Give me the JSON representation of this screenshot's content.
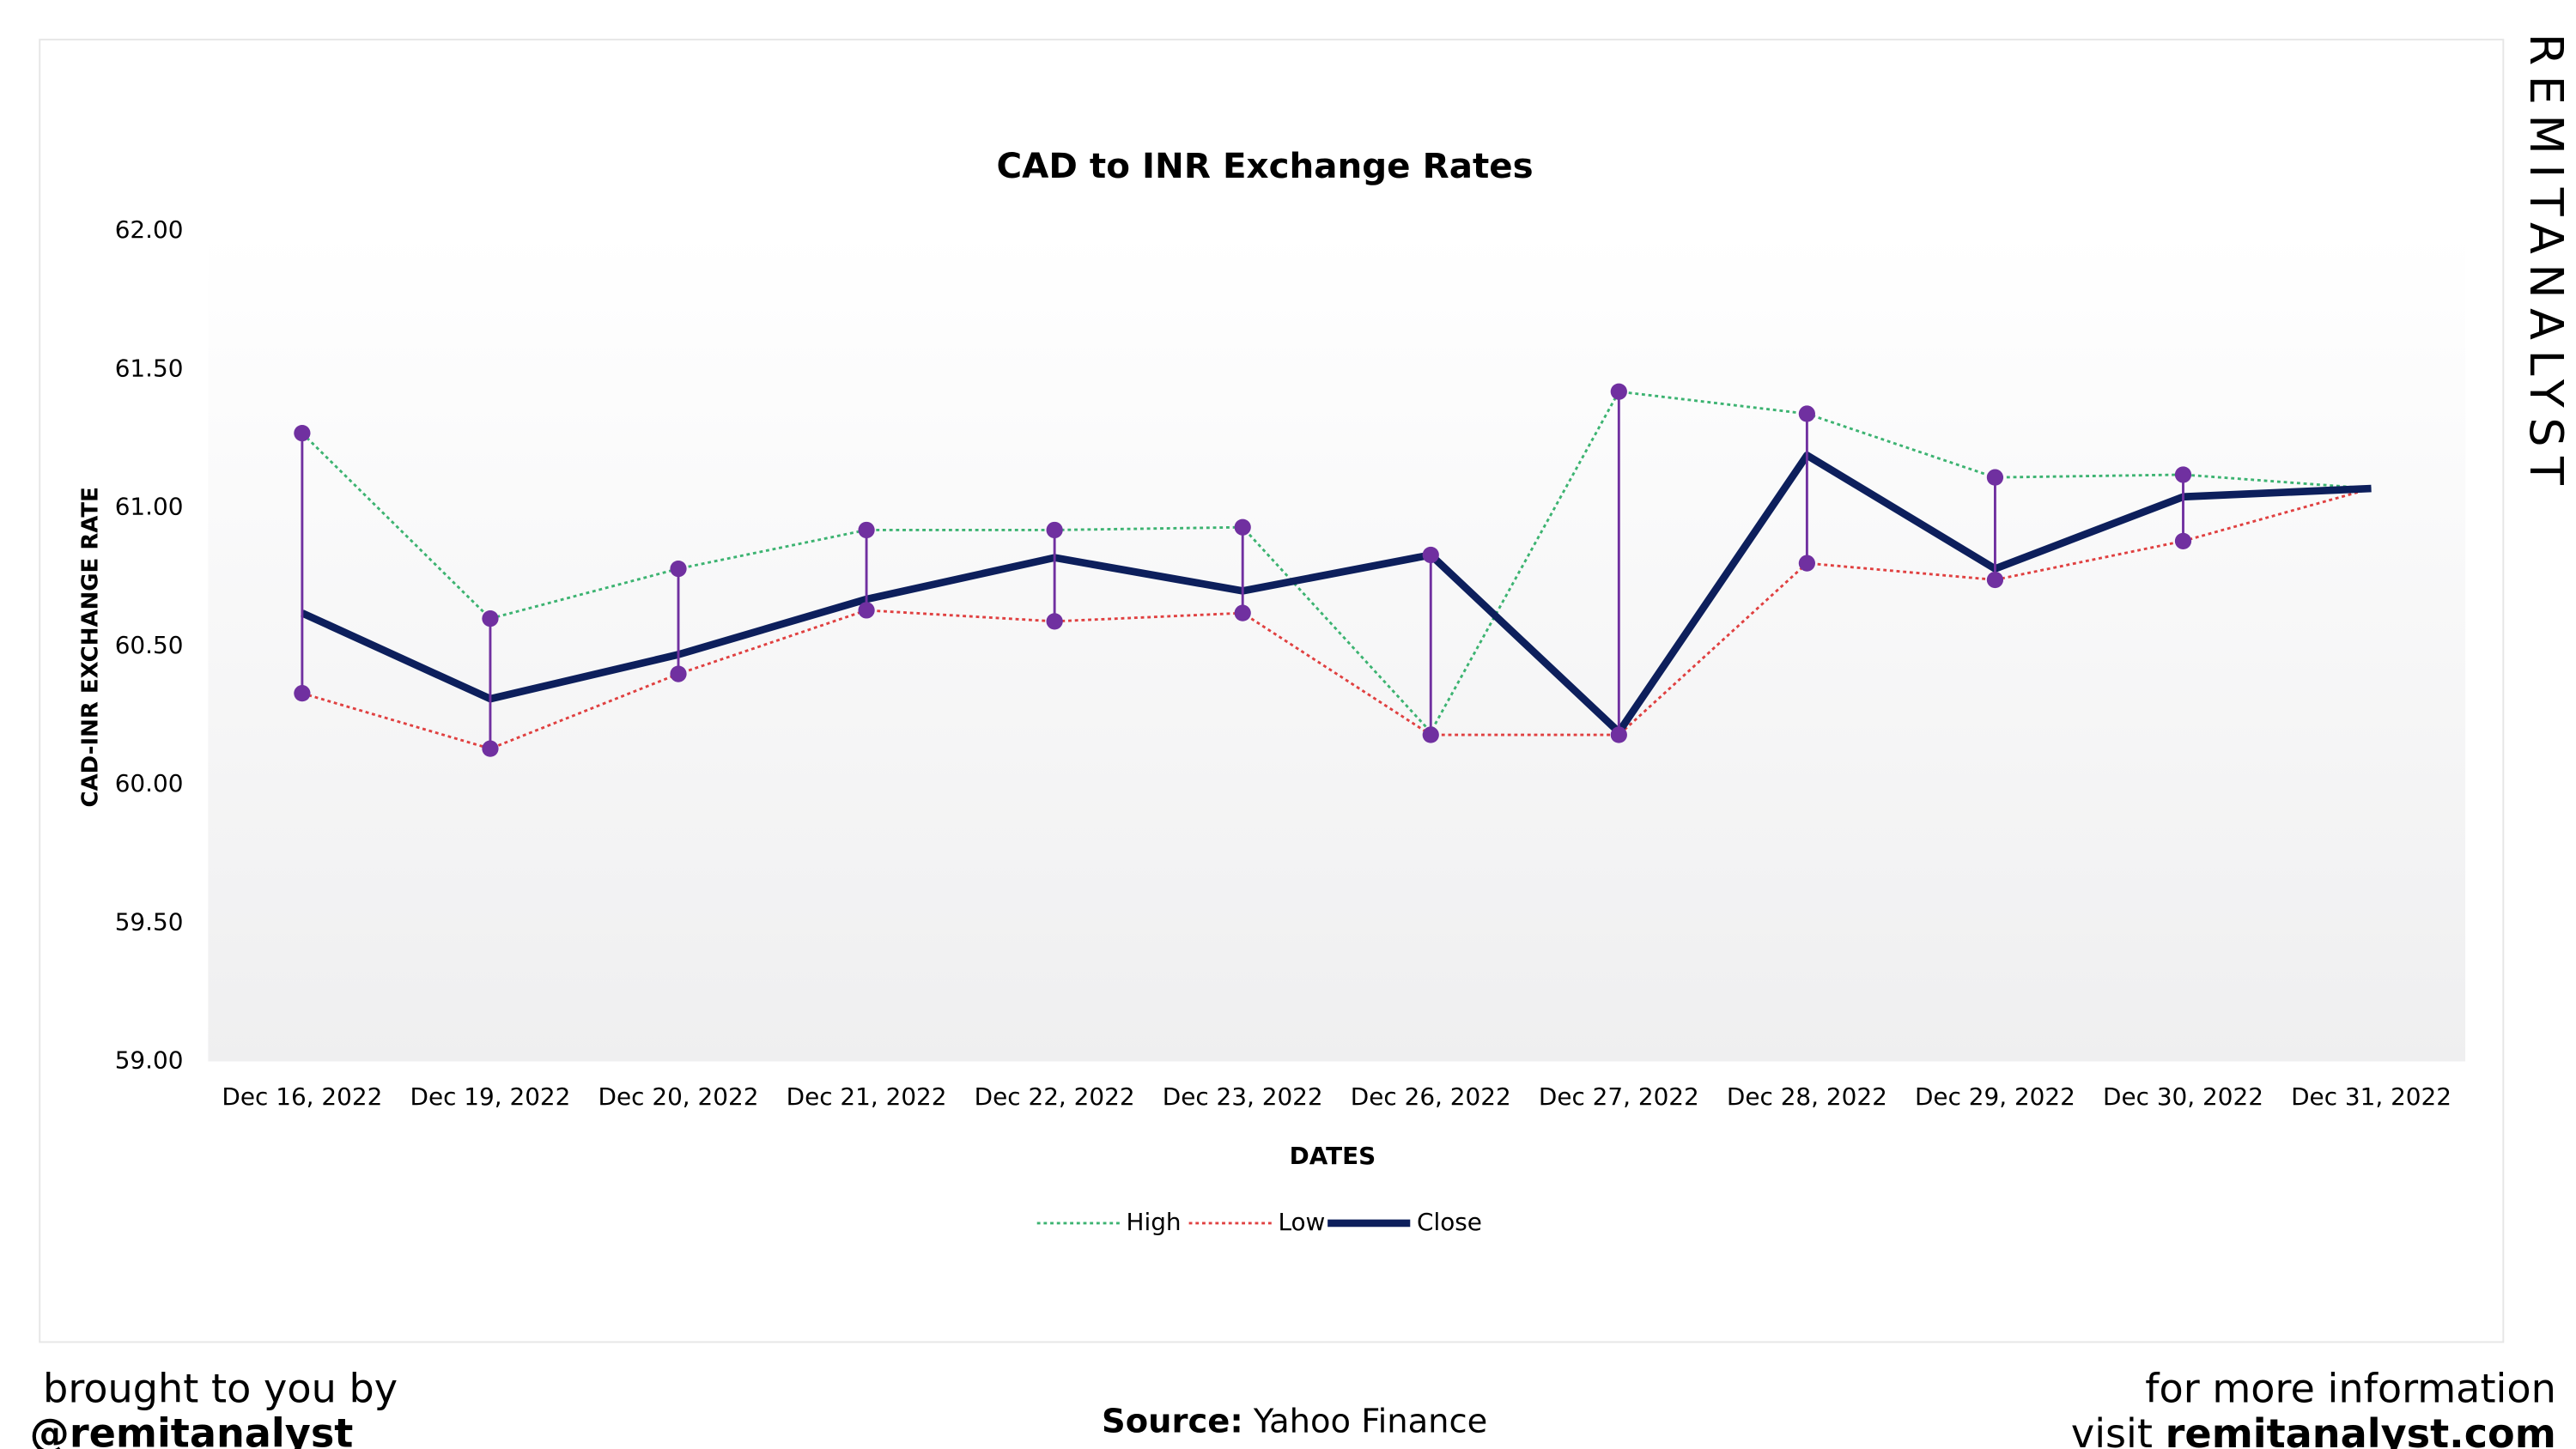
{
  "chart_data": {
    "type": "line",
    "title": "CAD to INR Exchange Rates",
    "x_label": "DATES",
    "y_label": "CAD-INR EXCHANGE RATE",
    "categories": [
      "Dec 16, 2022",
      "Dec 19, 2022",
      "Dec 20, 2022",
      "Dec 21, 2022",
      "Dec 22, 2022",
      "Dec 23, 2022",
      "Dec 26, 2022",
      "Dec 27, 2022",
      "Dec 28, 2022",
      "Dec 29, 2022",
      "Dec 30, 2022",
      "Dec 31, 2022"
    ],
    "series": [
      {
        "name": "High",
        "color": "#3cb371",
        "line_style": "dotted",
        "values": [
          61.27,
          60.6,
          60.78,
          60.92,
          60.92,
          60.93,
          60.19,
          61.42,
          61.34,
          61.11,
          61.12,
          61.07
        ]
      },
      {
        "name": "Low",
        "color": "#e04040",
        "line_style": "dotted",
        "values": [
          60.33,
          60.13,
          60.4,
          60.63,
          60.59,
          60.62,
          60.18,
          60.18,
          60.8,
          60.74,
          60.88,
          61.07
        ]
      },
      {
        "name": "Close",
        "color": "#0d1f5c",
        "line_style": "solid",
        "values": [
          60.62,
          60.31,
          60.47,
          60.67,
          60.82,
          60.7,
          60.83,
          60.19,
          61.19,
          60.78,
          61.04,
          61.07
        ]
      }
    ],
    "range_color": "#7030a0",
    "ylim": [
      59,
      62
    ],
    "yticks": [
      {
        "value": 59,
        "label": "59.00"
      },
      {
        "value": 59.5,
        "label": "59.50"
      },
      {
        "value": 60,
        "label": "60.00"
      },
      {
        "value": 60.5,
        "label": "60.50"
      },
      {
        "value": 61,
        "label": "61.00"
      },
      {
        "value": 61.5,
        "label": "61.50"
      },
      {
        "value": 62,
        "label": "62.00"
      }
    ],
    "legend": "bottom"
  },
  "watermark": "REMITANALYST",
  "footer": {
    "left_line1": "brought to you by",
    "left_line2": "@remitanalyst",
    "source_label": "Source:",
    "source": "Yahoo Finance",
    "right_line1": "for more information",
    "right_prefix": "visit",
    "right_site": "remitanalyst.com"
  }
}
